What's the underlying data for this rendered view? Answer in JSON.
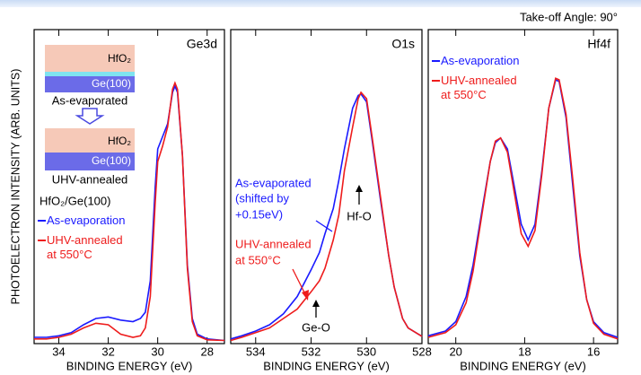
{
  "figure": {
    "note": "Take-off Angle: 90°",
    "ylabel": "PHOTOELECTRON INTENSITY (ARB. UNITS)"
  },
  "chart_data": [
    {
      "type": "line",
      "title": "Ge3d",
      "xlabel": "BINDING ENERGY (eV)",
      "xlim": [
        35,
        27.3
      ],
      "xticks": [
        34,
        32,
        30,
        28
      ],
      "ylim": [
        0,
        100
      ],
      "x": [
        35,
        34.5,
        34,
        33.5,
        33,
        32.5,
        32,
        31.5,
        31,
        30.7,
        30.5,
        30.3,
        30.1,
        30.0,
        29.8,
        29.6,
        29.4,
        29.3,
        29.2,
        29.0,
        28.8,
        28.6,
        28.4,
        28,
        27.3
      ],
      "series": [
        {
          "name": "As-evaporation",
          "color": "#1a1aff",
          "values": [
            2,
            2,
            2.5,
            3.5,
            6,
            8,
            8.5,
            7.5,
            7,
            8,
            10,
            20,
            50,
            62,
            66,
            70,
            80,
            82,
            80,
            60,
            25,
            8,
            3,
            1.5,
            1
          ]
        },
        {
          "name": "UHV-annealed at 550°C",
          "color": "#ee1c1c",
          "values": [
            1.5,
            1.5,
            2,
            3,
            5,
            6.5,
            6,
            3,
            2,
            2.5,
            5,
            15,
            45,
            58,
            63,
            69,
            81,
            83,
            81,
            60,
            24,
            7,
            2.5,
            1.2,
            1
          ]
        }
      ],
      "inset": {
        "top_layers": [
          "HfO₂",
          "Ge(100)"
        ],
        "top_label": "As-evaporated",
        "bottom_layers": [
          "HfO₂",
          "Ge(100)"
        ],
        "bottom_label": "UHV-annealed",
        "sample": "HfO₂/Ge(100)"
      }
    },
    {
      "type": "line",
      "title": "O1s",
      "xlabel": "BINDING ENERGY (eV)",
      "xlim": [
        534.9,
        528
      ],
      "xticks": [
        534,
        532,
        530,
        528
      ],
      "ylim": [
        0,
        100
      ],
      "x": [
        534.9,
        534.5,
        534,
        533.5,
        533,
        532.5,
        532,
        531.7,
        531.5,
        531.2,
        531,
        530.8,
        530.5,
        530.3,
        530.2,
        530.0,
        529.8,
        529.5,
        529.2,
        529,
        528.7,
        528.5,
        528
      ],
      "series": [
        {
          "color": "#1a1aff",
          "values": [
            1.5,
            2.5,
            4,
            6,
            9.5,
            15,
            23.5,
            29,
            35,
            43,
            52,
            62,
            75,
            79,
            79.5,
            77,
            65,
            46,
            28,
            18,
            8,
            5,
            2.3
          ]
        },
        {
          "color": "#ee1c1c",
          "values": [
            1,
            2,
            3.5,
            5,
            8,
            11,
            16.5,
            20,
            24,
            33,
            41,
            55,
            69,
            78,
            80,
            78,
            66,
            47,
            28,
            18,
            8,
            5,
            2.3
          ]
        }
      ],
      "annotations": [
        {
          "text": "As-evaporated",
          "color": "#1a1aff"
        },
        {
          "text": "(shifted by",
          "color": "#1a1aff"
        },
        {
          "text": "+0.15eV)",
          "color": "#1a1aff"
        },
        {
          "text": "Hf-O",
          "color": "#000000"
        },
        {
          "text": "UHV-annealed",
          "color": "#ee1c1c"
        },
        {
          "text": "at 550°C",
          "color": "#ee1c1c"
        },
        {
          "text": "Ge-O",
          "color": "#000000"
        }
      ]
    },
    {
      "type": "line",
      "title": "Hf4f",
      "xlabel": "BINDING ENERGY (eV)",
      "xlim": [
        20.8,
        15.3
      ],
      "xticks": [
        20,
        18,
        16
      ],
      "ylim": [
        0,
        100
      ],
      "x": [
        20.8,
        20.3,
        20,
        19.7,
        19.5,
        19.2,
        19,
        18.85,
        18.7,
        18.5,
        18.3,
        18.1,
        17.9,
        17.7,
        17.5,
        17.3,
        17.1,
        17.0,
        16.8,
        16.6,
        16.4,
        16.2,
        16,
        15.7,
        15.3
      ],
      "series": [
        {
          "name": "As-evaporation",
          "color": "#1a1aff",
          "values": [
            2.5,
            4,
            7,
            15,
            25,
            45,
            58,
            64,
            65.5,
            62,
            50,
            38,
            33,
            38,
            55,
            75,
            84,
            83.5,
            72,
            50,
            28,
            14,
            7,
            3.5,
            2
          ]
        },
        {
          "name": "UHV-annealed at 550°C",
          "color": "#ee1c1c",
          "values": [
            2,
            3.5,
            6,
            13,
            23,
            44,
            58,
            64.5,
            65.5,
            61,
            48,
            35,
            31,
            36,
            54,
            75,
            84.5,
            84,
            73,
            52,
            29,
            14,
            6.5,
            3,
            1.5
          ]
        }
      ]
    }
  ]
}
